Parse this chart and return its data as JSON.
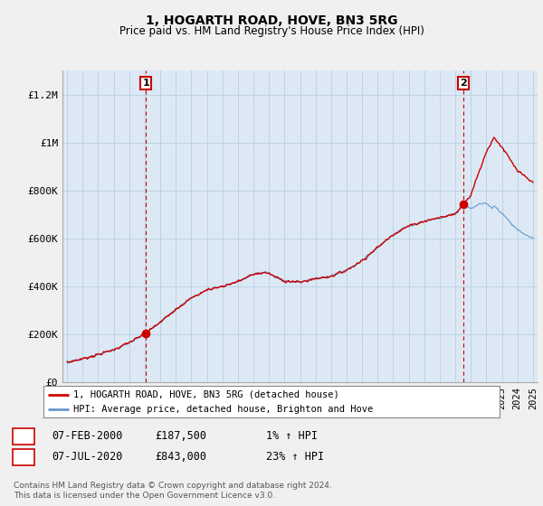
{
  "title": "1, HOGARTH ROAD, HOVE, BN3 5RG",
  "subtitle": "Price paid vs. HM Land Registry's House Price Index (HPI)",
  "footer": "Contains HM Land Registry data © Crown copyright and database right 2024.\nThis data is licensed under the Open Government Licence v3.0.",
  "ylabel_ticks": [
    "£0",
    "£200K",
    "£400K",
    "£600K",
    "£800K",
    "£1M",
    "£1.2M"
  ],
  "ytick_values": [
    0,
    200000,
    400000,
    600000,
    800000,
    1000000,
    1200000
  ],
  "ylim": [
    0,
    1300000
  ],
  "x_start_year": 1995,
  "x_end_year": 2025,
  "sale1_date_num": 2000.08,
  "sale1_price": 187500,
  "sale1_label": "1",
  "sale2_date_num": 2020.5,
  "sale2_price": 843000,
  "sale2_label": "2",
  "legend_line1": "1, HOGARTH ROAD, HOVE, BN3 5RG (detached house)",
  "legend_line2": "HPI: Average price, detached house, Brighton and Hove",
  "table_row1": [
    "1",
    "07-FEB-2000",
    "£187,500",
    "1% ↑ HPI"
  ],
  "table_row2": [
    "2",
    "07-JUL-2020",
    "£843,000",
    "23% ↑ HPI"
  ],
  "price_line_color": "#cc0000",
  "hpi_line_color": "#6699cc",
  "background_color": "#f0f0f0",
  "plot_bg_color": "#dce9f5",
  "grid_color": "#b8cfe0",
  "marker_box_color": "#cc0000"
}
